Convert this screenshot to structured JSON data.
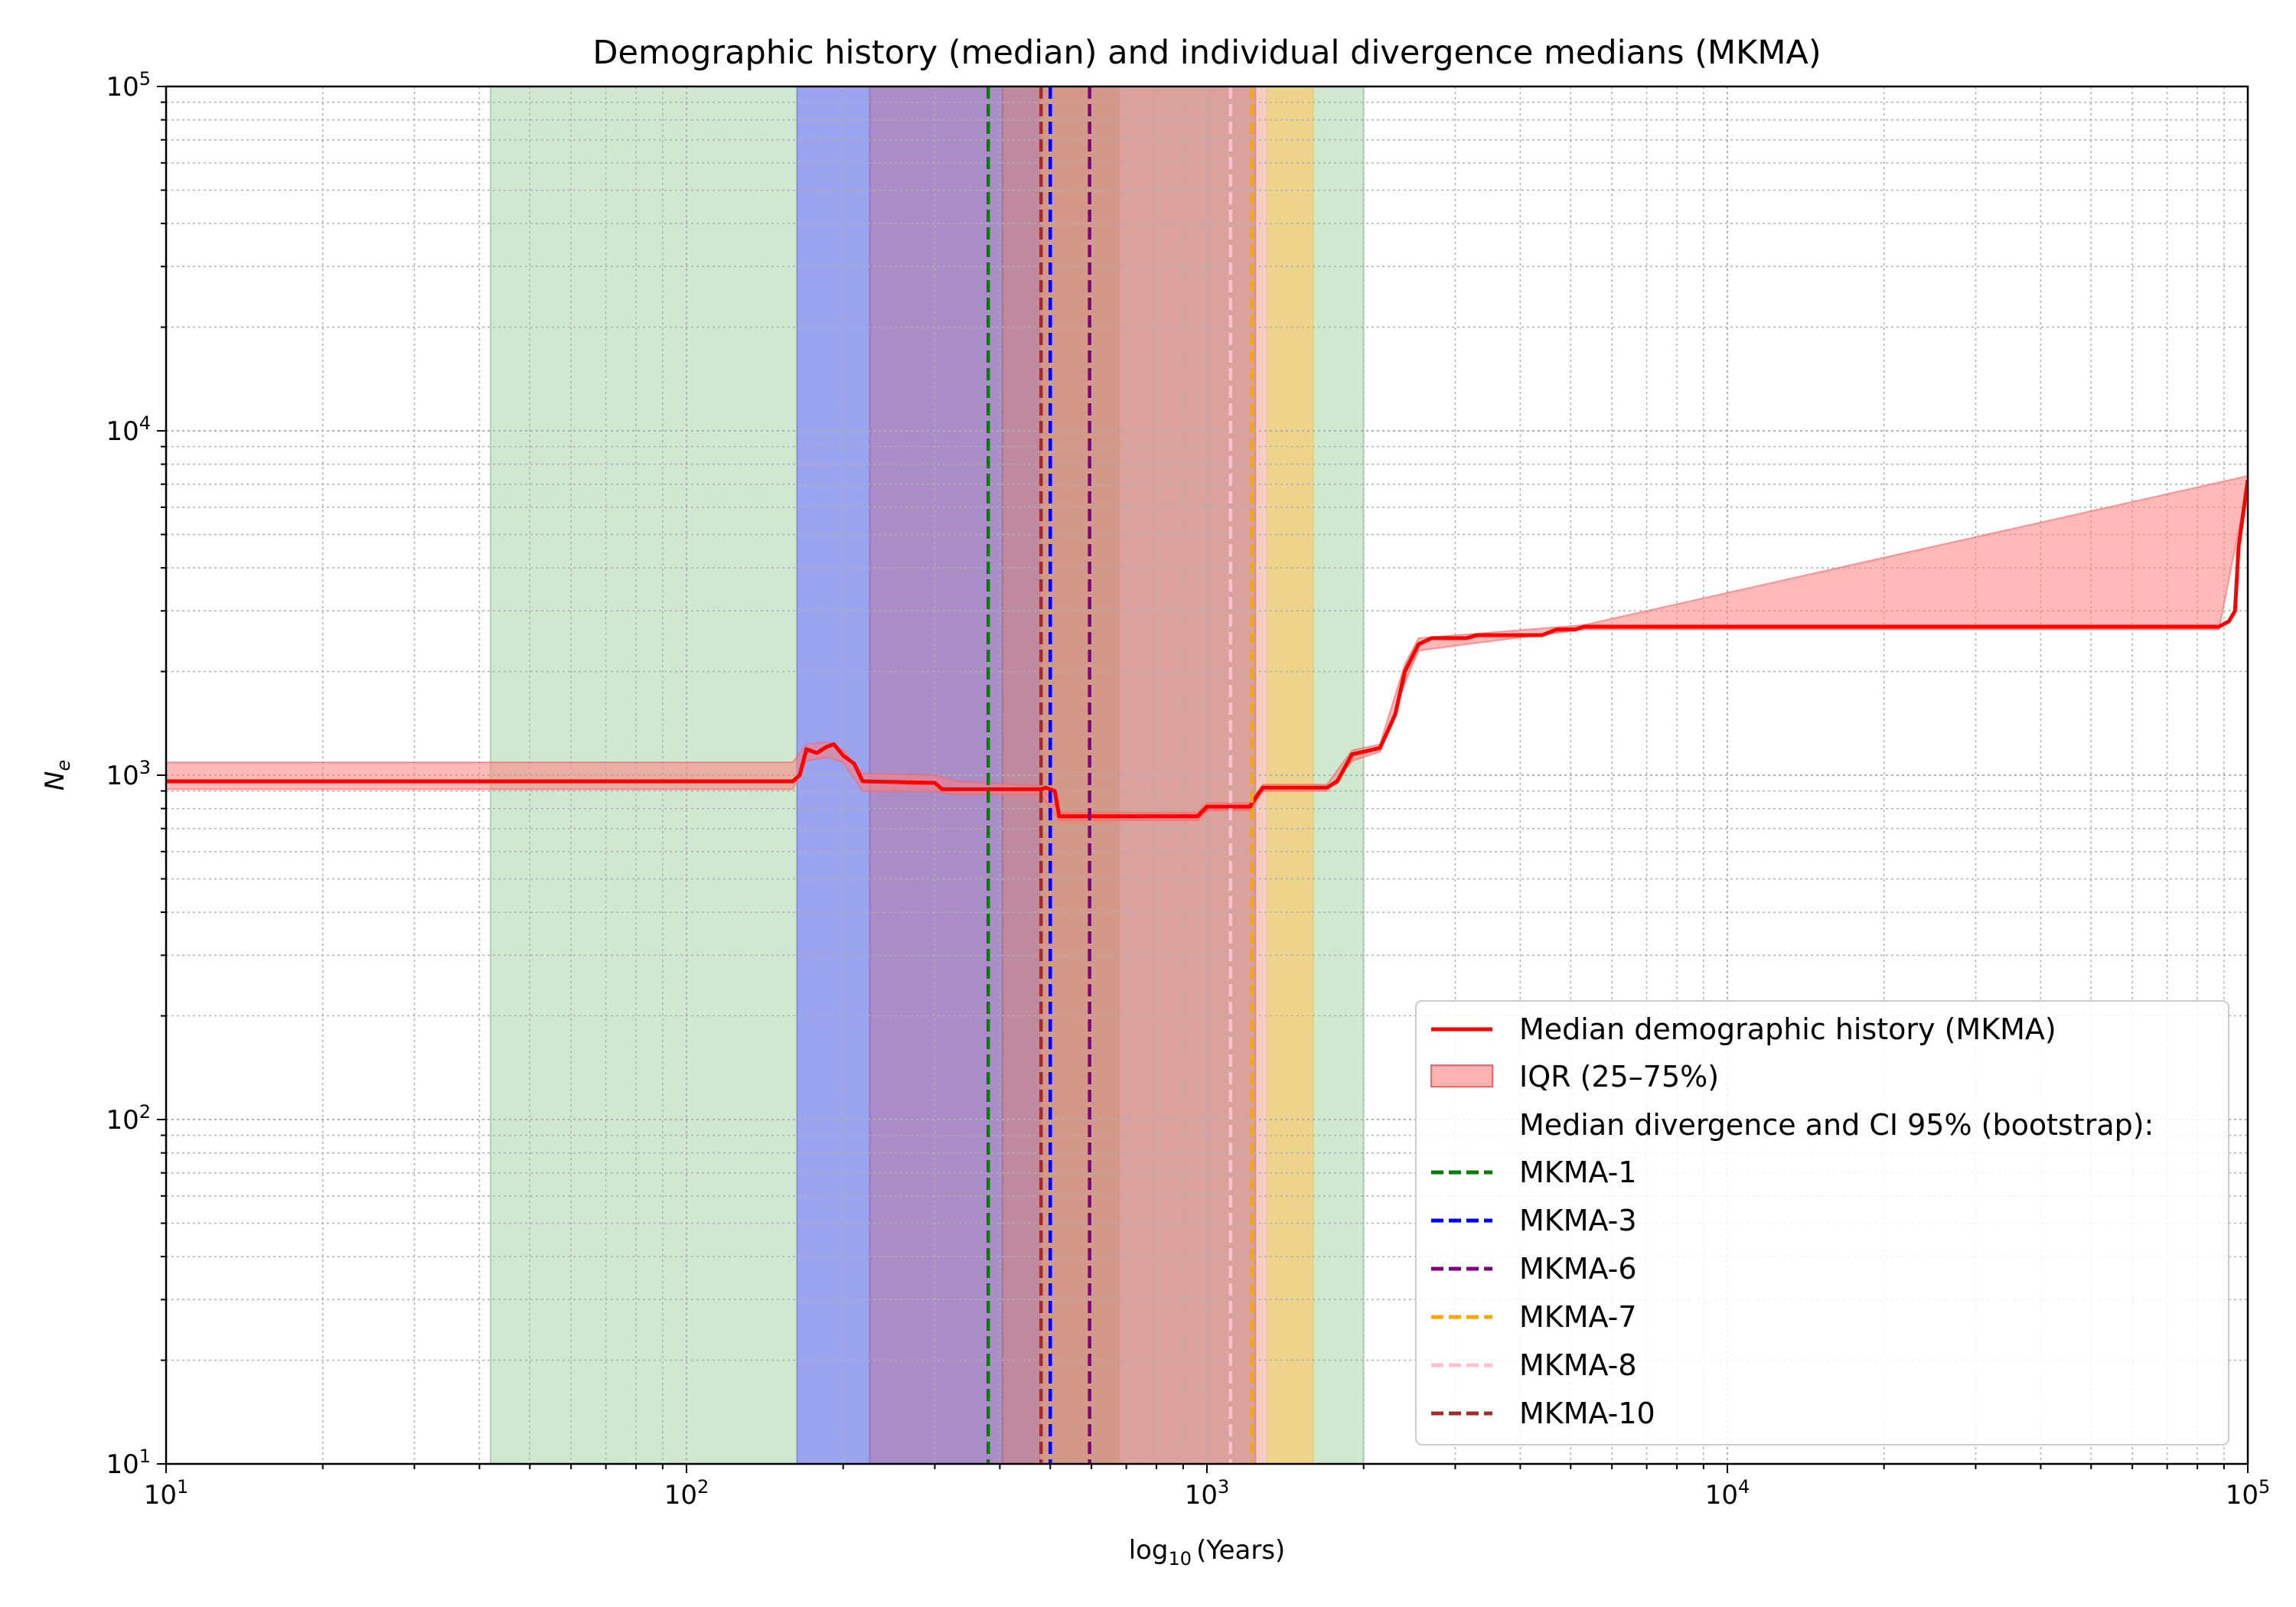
{
  "chart_data": {
    "type": "line",
    "title": "Demographic history (median) and individual divergence medians (MKMA)",
    "xlabel_base": "log",
    "xlabel_sub": "10",
    "xlabel_rest": "(Years)",
    "ylabel_main": "N",
    "ylabel_sub": "e",
    "xscale": "log",
    "yscale": "log",
    "xlim": [
      10,
      100000
    ],
    "ylim": [
      10,
      100000
    ],
    "grid": true,
    "legend_position": "lower-right",
    "x_ticks": [
      {
        "value": 10,
        "base": "10",
        "exp": "1"
      },
      {
        "value": 100,
        "base": "10",
        "exp": "2"
      },
      {
        "value": 1000,
        "base": "10",
        "exp": "3"
      },
      {
        "value": 10000,
        "base": "10",
        "exp": "4"
      },
      {
        "value": 100000,
        "base": "10",
        "exp": "5"
      }
    ],
    "y_ticks": [
      {
        "value": 10,
        "base": "10",
        "exp": "1"
      },
      {
        "value": 100,
        "base": "10",
        "exp": "2"
      },
      {
        "value": 1000,
        "base": "10",
        "exp": "3"
      },
      {
        "value": 10000,
        "base": "10",
        "exp": "4"
      },
      {
        "value": 100000,
        "base": "10",
        "exp": "5"
      }
    ],
    "median_series": {
      "name": "Median demographic history (MKMA)",
      "color": "#ff0000",
      "points": [
        [
          10,
          960
        ],
        [
          160,
          960
        ],
        [
          165,
          1000
        ],
        [
          170,
          1190
        ],
        [
          178,
          1160
        ],
        [
          186,
          1210
        ],
        [
          192,
          1230
        ],
        [
          200,
          1140
        ],
        [
          210,
          1080
        ],
        [
          218,
          960
        ],
        [
          300,
          950
        ],
        [
          310,
          910
        ],
        [
          480,
          910
        ],
        [
          490,
          920
        ],
        [
          510,
          900
        ],
        [
          520,
          760
        ],
        [
          960,
          760
        ],
        [
          1000,
          810
        ],
        [
          1210,
          810
        ],
        [
          1220,
          830
        ],
        [
          1280,
          920
        ],
        [
          1700,
          920
        ],
        [
          1780,
          960
        ],
        [
          1900,
          1150
        ],
        [
          2050,
          1180
        ],
        [
          2150,
          1200
        ],
        [
          2300,
          1500
        ],
        [
          2400,
          2000
        ],
        [
          2550,
          2400
        ],
        [
          2700,
          2500
        ],
        [
          3150,
          2500
        ],
        [
          3300,
          2550
        ],
        [
          4400,
          2550
        ],
        [
          4700,
          2650
        ],
        [
          5100,
          2650
        ],
        [
          5300,
          2700
        ],
        [
          88000,
          2700
        ],
        [
          92000,
          2800
        ],
        [
          94500,
          3000
        ],
        [
          96000,
          4600
        ],
        [
          100000,
          7200
        ]
      ]
    },
    "iqr_band": {
      "name": "IQR (25–75%)",
      "color": "#ff8080",
      "upper": [
        [
          10,
          1090
        ],
        [
          160,
          1090
        ],
        [
          170,
          1230
        ],
        [
          186,
          1250
        ],
        [
          200,
          1180
        ],
        [
          218,
          1010
        ],
        [
          300,
          1000
        ],
        [
          330,
          960
        ],
        [
          480,
          930
        ],
        [
          520,
          780
        ],
        [
          960,
          780
        ],
        [
          1000,
          830
        ],
        [
          1210,
          830
        ],
        [
          1280,
          940
        ],
        [
          1700,
          940
        ],
        [
          1900,
          1180
        ],
        [
          2150,
          1230
        ],
        [
          2400,
          2100
        ],
        [
          2550,
          2500
        ],
        [
          5300,
          2730
        ],
        [
          100000,
          7400
        ]
      ],
      "lower": [
        [
          10,
          910
        ],
        [
          160,
          910
        ],
        [
          170,
          1100
        ],
        [
          186,
          1130
        ],
        [
          200,
          1090
        ],
        [
          218,
          900
        ],
        [
          300,
          900
        ],
        [
          330,
          880
        ],
        [
          480,
          880
        ],
        [
          520,
          740
        ],
        [
          960,
          740
        ],
        [
          1000,
          790
        ],
        [
          1210,
          790
        ],
        [
          1280,
          900
        ],
        [
          1700,
          900
        ],
        [
          1900,
          1100
        ],
        [
          2150,
          1170
        ],
        [
          2400,
          1850
        ],
        [
          2550,
          2300
        ],
        [
          3150,
          2400
        ],
        [
          5300,
          2650
        ],
        [
          88000,
          2650
        ],
        [
          100000,
          7000
        ]
      ]
    },
    "legend_header": "Median divergence and CI 95% (bootstrap):",
    "divergences": [
      {
        "name": "MKMA-1",
        "color": "#008000",
        "median": 380,
        "ci": [
          42,
          2000
        ],
        "fill": "#b5dbb5"
      },
      {
        "name": "MKMA-3",
        "color": "#0000ff",
        "median": 500,
        "ci": [
          163,
          1280
        ],
        "fill": "#7f7fff"
      },
      {
        "name": "MKMA-6",
        "color": "#800080",
        "median": 595,
        "ci": [
          225,
          1300
        ],
        "fill": "#b27fb2"
      },
      {
        "name": "MKMA-7",
        "color": "#ffa500",
        "median": 1220,
        "ci": [
          480,
          1600
        ],
        "fill": "#ffc966"
      },
      {
        "name": "MKMA-8",
        "color": "#ffc0cb",
        "median": 1110,
        "ci": [
          680,
          1300
        ],
        "fill": "#ffdce3"
      },
      {
        "name": "MKMA-10",
        "color": "#a52a2a",
        "median": 480,
        "ci": [
          405,
          1240
        ],
        "fill": "#cc8888"
      }
    ]
  }
}
